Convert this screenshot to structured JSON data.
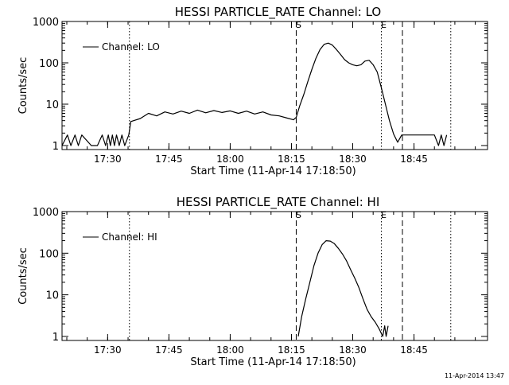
{
  "footer": {
    "timestamp": "11-Apr-2014 13:47"
  },
  "chart_data": [
    {
      "type": "line",
      "title": "HESSI PARTICLE_RATE Channel: LO",
      "xlabel": "Start Time (11-Apr-14 17:18:50)",
      "ylabel": "Counts/sec",
      "ylog": true,
      "xlim": [
        "17:18:50",
        "19:03:00"
      ],
      "ylim": [
        0.8,
        1000
      ],
      "x_ticks": [
        "17:30",
        "17:45",
        "18:00",
        "18:15",
        "18:30",
        "18:45"
      ],
      "y_ticks": [
        "1",
        "10",
        "100",
        "1000"
      ],
      "legend": {
        "entries": [
          "Channel: LO"
        ],
        "placement": "top-left"
      },
      "markers": [
        {
          "time": "17:35:20",
          "style": "dotted",
          "label": ""
        },
        {
          "time": "18:16:10",
          "style": "dashed",
          "label": "S"
        },
        {
          "time": "18:37:00",
          "style": "dotted",
          "label": "E"
        },
        {
          "time": "18:42:10",
          "style": "dashed",
          "label": ""
        },
        {
          "time": "18:54:00",
          "style": "dotted",
          "label": ""
        }
      ],
      "series": [
        {
          "name": "Channel: LO",
          "x": [
            "17:18:50",
            "17:20:10",
            "17:21:00",
            "17:22:00",
            "17:22:50",
            "17:23:40",
            "17:26:00",
            "17:27:30",
            "17:28:40",
            "17:29:30",
            "17:30:10",
            "17:30:40",
            "17:31:10",
            "17:31:40",
            "17:32:10",
            "17:32:50",
            "17:33:30",
            "17:34:10",
            "17:35:10",
            "17:35:40",
            "17:38:00",
            "17:40:00",
            "17:42:00",
            "17:44:00",
            "17:46:00",
            "17:48:00",
            "17:50:00",
            "17:52:00",
            "17:54:00",
            "17:56:00",
            "17:58:00",
            "18:00:00",
            "18:02:00",
            "18:04:00",
            "18:06:00",
            "18:08:00",
            "18:10:00",
            "18:12:00",
            "18:14:00",
            "18:15:30",
            "18:16:10",
            "18:17:00",
            "18:18:00",
            "18:19:00",
            "18:20:00",
            "18:21:00",
            "18:22:00",
            "18:23:00",
            "18:24:00",
            "18:25:00",
            "18:26:00",
            "18:27:00",
            "18:28:00",
            "18:29:00",
            "18:30:00",
            "18:31:00",
            "18:32:00",
            "18:33:00",
            "18:34:00",
            "18:35:00",
            "18:36:00",
            "18:37:00",
            "18:38:00",
            "18:39:00",
            "18:40:00",
            "18:41:00",
            "18:42:00",
            "18:44:00",
            "18:46:00",
            "18:48:00",
            "18:50:00",
            "18:51:00",
            "18:51:40",
            "18:52:20",
            "18:53:00"
          ],
          "values": [
            1.0,
            1.8,
            1.0,
            1.8,
            1.0,
            1.8,
            1.0,
            1.0,
            1.8,
            1.0,
            1.8,
            1.0,
            1.8,
            1.0,
            1.8,
            1.0,
            1.8,
            1.0,
            1.8,
            3.8,
            4.5,
            6.0,
            5.2,
            6.5,
            5.8,
            6.8,
            6.0,
            7.2,
            6.2,
            7.0,
            6.3,
            6.9,
            6.0,
            6.8,
            5.8,
            6.5,
            5.5,
            5.2,
            4.6,
            4.2,
            4.8,
            9.0,
            17.0,
            35.0,
            70.0,
            130.0,
            210.0,
            280.0,
            300.0,
            270.0,
            210.0,
            160.0,
            120.0,
            100.0,
            90.0,
            85.0,
            90.0,
            110.0,
            115.0,
            90.0,
            60.0,
            25.0,
            10.0,
            4.0,
            1.9,
            1.2,
            1.8,
            1.8,
            1.8,
            1.8,
            1.8,
            1.0,
            1.8,
            1.0,
            1.8
          ]
        }
      ]
    },
    {
      "type": "line",
      "title": "HESSI PARTICLE_RATE Channel: HI",
      "xlabel": "Start Time (11-Apr-14 17:18:50)",
      "ylabel": "Counts/sec",
      "ylog": true,
      "xlim": [
        "17:18:50",
        "19:03:00"
      ],
      "ylim": [
        0.8,
        1000
      ],
      "x_ticks": [
        "17:30",
        "17:45",
        "18:00",
        "18:15",
        "18:30",
        "18:45"
      ],
      "y_ticks": [
        "1",
        "10",
        "100",
        "1000"
      ],
      "legend": {
        "entries": [
          "Channel: HI"
        ],
        "placement": "top-left"
      },
      "markers": [
        {
          "time": "17:35:20",
          "style": "dotted",
          "label": ""
        },
        {
          "time": "18:16:10",
          "style": "dashed",
          "label": "S"
        },
        {
          "time": "18:37:00",
          "style": "dotted",
          "label": "E"
        },
        {
          "time": "18:42:10",
          "style": "dashed",
          "label": ""
        },
        {
          "time": "18:54:00",
          "style": "dotted",
          "label": ""
        }
      ],
      "series": [
        {
          "name": "Channel: HI",
          "x": [
            "18:16:40",
            "18:17:30",
            "18:18:30",
            "18:19:30",
            "18:20:30",
            "18:21:30",
            "18:22:30",
            "18:23:30",
            "18:24:30",
            "18:25:30",
            "18:26:30",
            "18:27:30",
            "18:28:30",
            "18:29:30",
            "18:30:30",
            "18:31:30",
            "18:32:30",
            "18:33:30",
            "18:34:30",
            "18:35:30",
            "18:36:30",
            "18:37:20",
            "18:37:50",
            "18:38:10",
            "18:38:40"
          ],
          "values": [
            1.0,
            3.0,
            8.0,
            20.0,
            50.0,
            100.0,
            160.0,
            200.0,
            195.0,
            170.0,
            130.0,
            95.0,
            65.0,
            40.0,
            25.0,
            15.0,
            8.0,
            4.5,
            3.0,
            2.2,
            1.5,
            1.0,
            1.8,
            1.0,
            1.8
          ]
        }
      ]
    }
  ]
}
